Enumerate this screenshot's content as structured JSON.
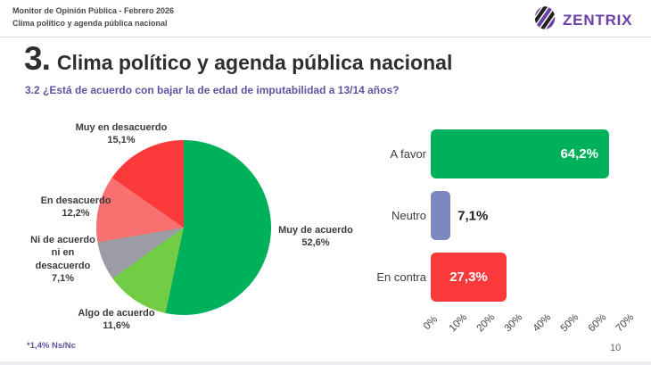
{
  "header": {
    "line1": "Monitor de Opinión Pública - Febrero 2026",
    "line2": "Clima político y agenda pública nacional"
  },
  "logo": {
    "text": "ZENTRIX"
  },
  "title": {
    "number": "3.",
    "text": "Clima político y agenda pública nacional"
  },
  "subtitle": "3.2 ¿Está de acuerdo con bajar la de edad de imputabilidad a 13/14 años?",
  "footnote": "*1,4% Ns/Nc",
  "page_number": "10",
  "colors": {
    "brand_purple": "#6b3fa5",
    "subtitle_purple": "#6152a2",
    "green": "#00b15c",
    "light_green": "#72cd45",
    "gray": "#9b9ca6",
    "salmon": "#f97070",
    "red": "#fa3a3a",
    "periwinkle": "#7d88be"
  },
  "chart_data": [
    {
      "type": "pie",
      "title": "",
      "labels": [
        "Muy de acuerdo",
        "Algo de acuerdo",
        "Ni de acuerdo ni en desacuerdo",
        "En desacuerdo",
        "Muy en desacuerdo"
      ],
      "label_lines": [
        [
          "Muy de acuerdo"
        ],
        [
          "Algo de acuerdo"
        ],
        [
          "Ni de acuerdo",
          "ni en",
          "desacuerdo"
        ],
        [
          "En desacuerdo"
        ],
        [
          "Muy en desacuerdo"
        ]
      ],
      "values": [
        52.6,
        11.6,
        7.1,
        12.2,
        15.1
      ],
      "value_labels": [
        "52,6%",
        "11,6%",
        "7,1%",
        "12,2%",
        "15,1%"
      ],
      "colors": [
        "#00b15c",
        "#72cd45",
        "#9b9ca6",
        "#f97070",
        "#fa3a3a"
      ],
      "start_angle_deg": 0,
      "direction": "clockwise",
      "note": "*1,4% Ns/Nc excluded from pie"
    },
    {
      "type": "bar",
      "orientation": "horizontal",
      "categories": [
        "A favor",
        "Neutro",
        "En contra"
      ],
      "values": [
        64.2,
        7.1,
        27.3
      ],
      "value_labels": [
        "64,2%",
        "7,1%",
        "27,3%"
      ],
      "colors": [
        "#00b15c",
        "#7d88be",
        "#fa3a3a"
      ],
      "xlim": [
        0,
        70
      ],
      "x_ticks": [
        "0%",
        "10%",
        "20%",
        "30%",
        "40%",
        "50%",
        "60%",
        "70%"
      ],
      "grid": false,
      "legend": false
    }
  ]
}
